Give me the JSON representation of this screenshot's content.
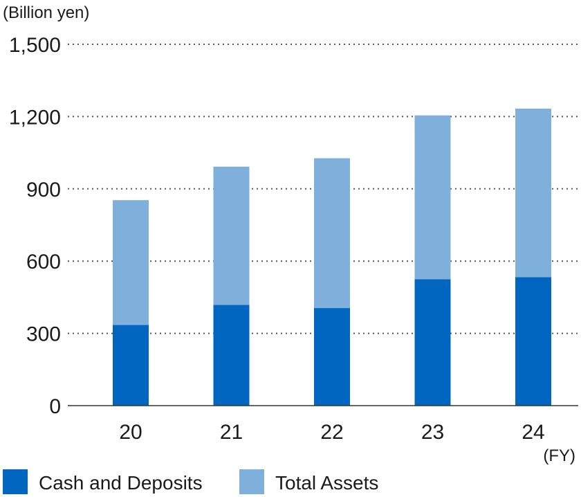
{
  "chart_data": {
    "type": "bar",
    "stacked": true,
    "unit_label": "(Billion yen)",
    "x_unit_label": "(FY)",
    "categories": [
      "20",
      "21",
      "22",
      "23",
      "24"
    ],
    "series": [
      {
        "name": "Cash and Deposits",
        "color": "#0066bf",
        "values": [
          335,
          418,
          405,
          525,
          533
        ]
      },
      {
        "name": "Total Assets",
        "color": "#7fb0dc",
        "values": [
          518,
          574,
          622,
          680,
          700
        ]
      }
    ],
    "totals": [
      853,
      992,
      1027,
      1205,
      1233
    ],
    "y_ticks": [
      "0",
      "300",
      "600",
      "900",
      "1,200",
      "1,500"
    ],
    "ylim": [
      0,
      1500
    ],
    "grid": "dotted horizontal",
    "legend_position": "bottom-left"
  }
}
